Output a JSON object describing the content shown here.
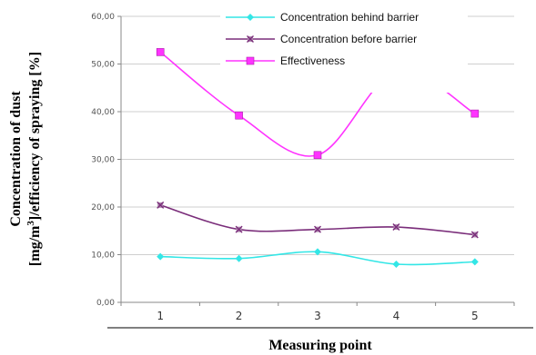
{
  "chart_data": {
    "type": "line",
    "categories": [
      "1",
      "2",
      "3",
      "4",
      "5"
    ],
    "ylim": [
      0,
      60
    ],
    "yticks": [
      "0,00",
      "10,00",
      "20,00",
      "30,00",
      "40,00",
      "50,00",
      "60,00"
    ],
    "xlabel": "Measuring point",
    "ylabel_line1": "Concentration of dust",
    "ylabel_line2_pre": "[mg/m",
    "ylabel_line2_sup": "3",
    "ylabel_line2_post": "]/efficiency of spraying [%]",
    "grid": "horizontal",
    "legend_position": "top",
    "series": [
      {
        "name": "Concentration behind barrier",
        "color": "#33e6e6",
        "marker": "diamond",
        "values": [
          9.6,
          9.2,
          10.6,
          8.0,
          8.5
        ]
      },
      {
        "name": "Concentration before barrier",
        "color": "#7a2d7a",
        "marker": "x",
        "values": [
          20.4,
          15.3,
          15.3,
          15.8,
          14.2
        ]
      },
      {
        "name": "Effectiveness",
        "color": "#ff33ff",
        "marker": "square",
        "values": [
          52.5,
          39.2,
          30.9,
          48.4,
          39.6
        ]
      }
    ]
  }
}
